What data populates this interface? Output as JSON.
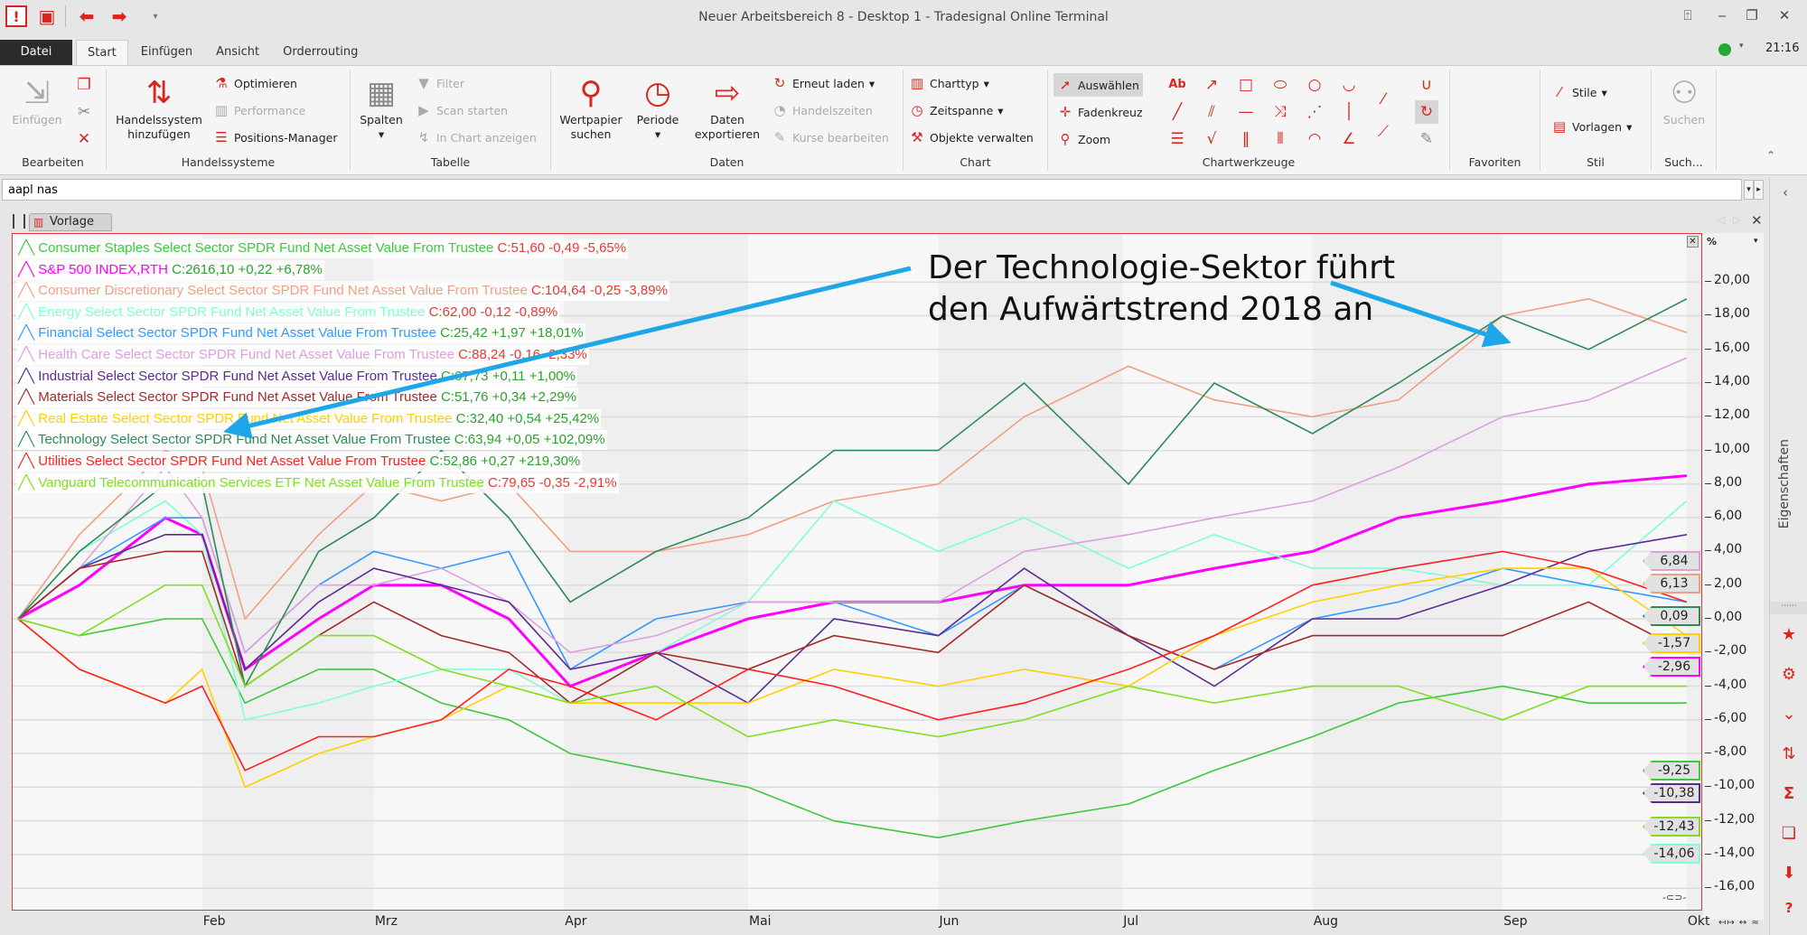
{
  "window": {
    "title": "Neuer Arbeitsbereich 8 - Desktop 1 - Tradesignal Online Terminal",
    "time": "21:16",
    "status_color": "#22aa33"
  },
  "quick_access": [
    "app-logo-icon",
    "save-icon",
    "back-icon",
    "forward-icon",
    "customize-icon"
  ],
  "tabs": {
    "file": "Datei",
    "items": [
      "Start",
      "Einfügen",
      "Ansicht",
      "Orderrouting"
    ],
    "active": "Start"
  },
  "ribbon": {
    "bearbeiten": {
      "label": "Bearbeiten",
      "paste": "Einfügen"
    },
    "handelssysteme": {
      "label": "Handelssysteme",
      "add": "Handelssystem hinzufügen",
      "optimize": "Optimieren",
      "performance": "Performance",
      "positions": "Positions-Manager"
    },
    "tabelle": {
      "label": "Tabelle",
      "columns": "Spalten",
      "filter": "Filter",
      "scan": "Scan starten",
      "show_chart": "In Chart anzeigen"
    },
    "daten": {
      "label": "Daten",
      "search": "Wertpapier suchen",
      "period": "Periode",
      "export": "Daten exportieren",
      "reload": "Erneut laden",
      "hours": "Handelszeiten",
      "edit": "Kurse bearbeiten"
    },
    "chart": {
      "label": "Chart",
      "type": "Charttyp",
      "span": "Zeitspanne",
      "objects": "Objekte verwalten"
    },
    "werkzeuge": {
      "label": "Chartwerkzeuge",
      "select": "Auswählen",
      "crosshair": "Fadenkreuz",
      "zoom": "Zoom"
    },
    "favoriten": {
      "label": "Favoriten"
    },
    "stil": {
      "label": "Stil",
      "styles": "Stile",
      "templates": "Vorlagen"
    },
    "suchen": {
      "label": "Such...",
      "search": "Suchen"
    }
  },
  "search": {
    "value": "aapl nas"
  },
  "chart_window": {
    "tab": "Vorlage"
  },
  "sidebar": {
    "label": "Eigenschaften"
  },
  "annotation": {
    "line1": "Der Technologie-Sektor führt",
    "line2": "den Aufwärtstrend 2018 an",
    "arrow_color": "#1ea7e8"
  },
  "chart_data": {
    "type": "line",
    "ylabel": "%",
    "ylim": [
      -16,
      20
    ],
    "yticks": [
      "20,00",
      "18,00",
      "16,00",
      "14,00",
      "12,00",
      "10,00",
      "8,00",
      "6,00",
      "4,00",
      "2,00",
      "0,00",
      "-2,00",
      "-4,00",
      "-6,00",
      "-8,00",
      "-10,00",
      "-12,00",
      "-14,00",
      "-16,00"
    ],
    "months": [
      "Feb",
      "Mrz",
      "Apr",
      "Mai",
      "Jun",
      "Jul",
      "Aug",
      "Sep",
      "Okt"
    ],
    "x": [
      "2018-01-02",
      "2018-01-12",
      "2018-01-26",
      "2018-02-01",
      "2018-02-08",
      "2018-02-20",
      "2018-03-01",
      "2018-03-12",
      "2018-03-23",
      "2018-04-02",
      "2018-04-16",
      "2018-05-01",
      "2018-05-15",
      "2018-06-01",
      "2018-06-15",
      "2018-07-02",
      "2018-07-16",
      "2018-08-01",
      "2018-08-15",
      "2018-09-01",
      "2018-09-15",
      "2018-10-01"
    ],
    "grid": true,
    "legend": "top-left",
    "series": [
      {
        "name": "Consumer Staples Select Sector SPDR Fund Net Asset Value From Trustee",
        "stats": "C:51,60 -0,49 -5,65%",
        "stats_color": "#e53935",
        "color": "#3ec83e",
        "values": [
          0,
          -1,
          0,
          0,
          -5,
          -3,
          -3,
          -5,
          -6,
          -8,
          -9,
          -10,
          -12,
          -13,
          -12,
          -11,
          -9,
          -7,
          -5,
          -4,
          -5,
          -5
        ]
      },
      {
        "name": "S&P 500 INDEX,RTH",
        "stats": "C:2616,10 +0,22 +6,78%",
        "stats_color": "#2ca02c",
        "color": "#ff00ff",
        "values": [
          0,
          2,
          6,
          5,
          -3,
          0,
          2,
          2,
          0,
          -4,
          -2,
          0,
          1,
          1,
          2,
          2,
          3,
          4,
          6,
          7,
          8,
          8.5
        ]
      },
      {
        "name": "Consumer Discretionary Select Sector SPDR Fund Net Asset Value From Trustee",
        "stats": "C:104,64 -0,25 -3,89%",
        "stats_color": "#e53935",
        "color": "#f0a080",
        "values": [
          0,
          5,
          10,
          9,
          0,
          5,
          8,
          7,
          8,
          4,
          4,
          5,
          7,
          8,
          12,
          15,
          13,
          12,
          13,
          18,
          19,
          17
        ]
      },
      {
        "name": "Energy Select Sector SPDR Fund Net Asset Value From Trustee",
        "stats": "C:62,00 -0,12 -0,89%",
        "stats_color": "#e53935",
        "color": "#7fffd4",
        "values": [
          0,
          4,
          7,
          5,
          -6,
          -5,
          -4,
          -3,
          -3,
          -5,
          -2,
          1,
          7,
          4,
          6,
          3,
          5,
          3,
          3,
          2,
          2,
          7
        ]
      },
      {
        "name": "Financial Select Sector SPDR Fund Net Asset Value From Trustee",
        "stats": "C:25,42 +1,97 +18,01%",
        "stats_color": "#2ca02c",
        "color": "#3399ff",
        "values": [
          0,
          3,
          6,
          6,
          -2,
          2,
          4,
          3,
          4,
          -3,
          0,
          1,
          1,
          -1,
          2,
          -1,
          -3,
          0,
          1,
          3,
          2,
          1
        ]
      },
      {
        "name": "Health Care Select Sector SPDR Fund Net Asset Value From Trustee",
        "stats": "C:88,24 -0,16 -2,33%",
        "stats_color": "#e53935",
        "color": "#dda0dd",
        "values": [
          0,
          3,
          9,
          6,
          -2,
          2,
          2,
          3,
          1,
          -2,
          -1,
          1,
          1,
          1,
          4,
          5,
          6,
          7,
          9,
          12,
          13,
          15.5
        ]
      },
      {
        "name": "Industrial Select Sector SPDR Fund Net Asset Value From Trustee",
        "stats": "C:67,73 +0,11 +1,00%",
        "stats_color": "#2ca02c",
        "color": "#5b2c8f",
        "values": [
          0,
          3,
          5,
          5,
          -3,
          1,
          3,
          2,
          1,
          -3,
          -2,
          -5,
          0,
          -1,
          3,
          -1,
          -4,
          0,
          0,
          2,
          4,
          5
        ]
      },
      {
        "name": "Materials Select Sector SPDR Fund Net Asset Value From Trustee",
        "stats": "C:51,76 +0,34 +2,29%",
        "stats_color": "#2ca02c",
        "color": "#a52a2a",
        "values": [
          0,
          3,
          4,
          4,
          -4,
          -1,
          1,
          -1,
          -2,
          -5,
          -2,
          -3,
          -1,
          -2,
          2,
          -1,
          -3,
          -1,
          -1,
          -1,
          1,
          -2
        ]
      },
      {
        "name": "Real Estate Select Sector SPDR Fund Net Asset Value From Trustee",
        "stats": "C:32,40 +0,54 +25,42%",
        "stats_color": "#2ca02c",
        "color": "#ffd000",
        "values": [
          0,
          -3,
          -5,
          -3,
          -10,
          -8,
          -7,
          -6,
          -4,
          -5,
          -5,
          -5,
          -3,
          -4,
          -3,
          -4,
          -1,
          1,
          2,
          3,
          3,
          -1
        ]
      },
      {
        "name": "Technology Select Sector SPDR Fund Net Asset Value From Trustee",
        "stats": "C:63,94 +0,05 +102,09%",
        "stats_color": "#2ca02c",
        "color": "#2e8b57",
        "values": [
          0,
          4,
          8,
          8,
          -4,
          4,
          6,
          10,
          6,
          1,
          4,
          6,
          10,
          10,
          14,
          8,
          14,
          11,
          14,
          18,
          16,
          19
        ]
      },
      {
        "name": "Utilities Select Sector SPDR Fund Net Asset Value From Trustee",
        "stats": "C:52,86 +0,27 +219,30%",
        "stats_color": "#2ca02c",
        "color": "#ff2020",
        "values": [
          0,
          -3,
          -5,
          -4,
          -9,
          -7,
          -7,
          -6,
          -3,
          -4,
          -6,
          -3,
          -4,
          -6,
          -5,
          -3,
          -1,
          2,
          3,
          4,
          3,
          1
        ]
      },
      {
        "name": "Vanguard Telecommunication Services ETF Net Asset Value From Trustee",
        "stats": "C:79,65 -0,35 -2,91%",
        "stats_color": "#e53935",
        "color": "#80e020",
        "values": [
          0,
          -1,
          2,
          2,
          -4,
          -1,
          -1,
          -3,
          -4,
          -5,
          -4,
          -7,
          -6,
          -7,
          -6,
          -4,
          -5,
          -4,
          -4,
          -6,
          -4,
          -4
        ]
      }
    ],
    "price_tags": [
      {
        "text": "6,84",
        "color": "#dda0dd"
      },
      {
        "text": "6,13",
        "color": "#f0a080"
      },
      {
        "text": "0,09",
        "color": "#2e8b57"
      },
      {
        "text": "-1,57",
        "color": "#ffd000"
      },
      {
        "text": "-2,96",
        "color": "#ff00ff"
      },
      {
        "text": "-9,25",
        "color": "#3ec83e"
      },
      {
        "text": "-10,38",
        "color": "#5b2c8f"
      },
      {
        "text": "-12,43",
        "color": "#80e020"
      },
      {
        "text": "-14,06",
        "color": "#7fffd4"
      }
    ]
  }
}
